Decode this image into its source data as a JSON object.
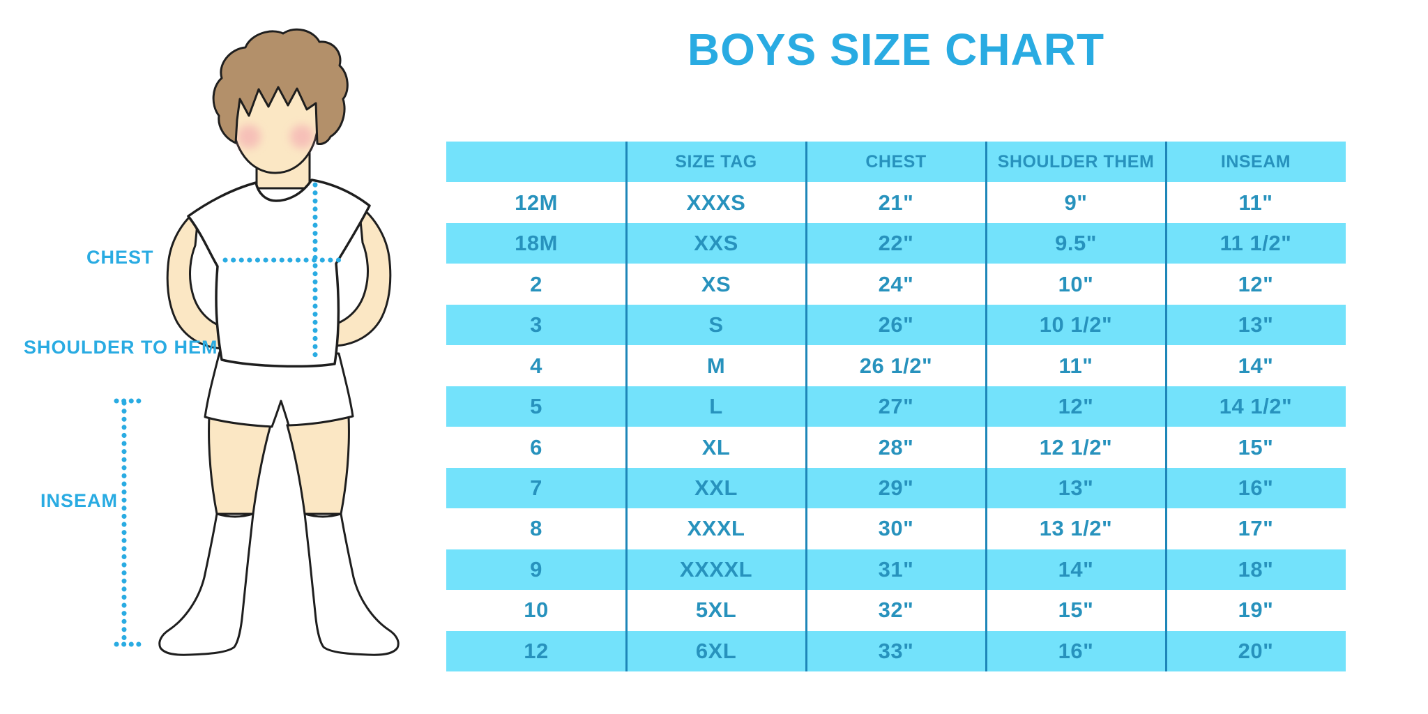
{
  "title": "BOYS SIZE CHART",
  "colors": {
    "accent_blue": "#29ABE2",
    "table_row_cyan": "#73E2FB",
    "table_text": "#2792BD",
    "table_divider": "#1E86B8",
    "skin": "#FBE7C4",
    "hair": "#B3906A",
    "cheek": "#F2A0AE",
    "outline": "#1E1E1E"
  },
  "diagram": {
    "labels": {
      "chest": "CHEST",
      "shoulder_to_hem": "SHOULDER TO HEM",
      "inseam": "INSEAM"
    },
    "figure": "boy-in-tshirt-shorts-knee-socks",
    "measure_lines": [
      "chest-horizontal-dotted",
      "shoulder-to-hem-vertical-dotted",
      "inseam-vertical-dotted-with-end-caps"
    ]
  },
  "chart_data": {
    "type": "table",
    "title": "BOYS SIZE CHART",
    "headers": [
      "",
      "SIZE TAG",
      "CHEST",
      "SHOULDER THEM",
      "INSEAM"
    ],
    "rows": [
      [
        "12M",
        "XXXS",
        "21\"",
        "9\"",
        "11\""
      ],
      [
        "18M",
        "XXS",
        "22\"",
        "9.5\"",
        "11 1/2\""
      ],
      [
        "2",
        "XS",
        "24\"",
        "10\"",
        "12\""
      ],
      [
        "3",
        "S",
        "26\"",
        "10 1/2\"",
        "13\""
      ],
      [
        "4",
        "M",
        "26 1/2\"",
        "11\"",
        "14\""
      ],
      [
        "5",
        "L",
        "27\"",
        "12\"",
        "14 1/2\""
      ],
      [
        "6",
        "XL",
        "28\"",
        "12 1/2\"",
        "15\""
      ],
      [
        "7",
        "XXL",
        "29\"",
        "13\"",
        "16\""
      ],
      [
        "8",
        "XXXL",
        "30\"",
        "13 1/2\"",
        "17\""
      ],
      [
        "9",
        "XXXXL",
        "31\"",
        "14\"",
        "18\""
      ],
      [
        "10",
        "5XL",
        "32\"",
        "15\"",
        "19\""
      ],
      [
        "12",
        "6XL",
        "33\"",
        "16\"",
        "20\""
      ]
    ]
  }
}
